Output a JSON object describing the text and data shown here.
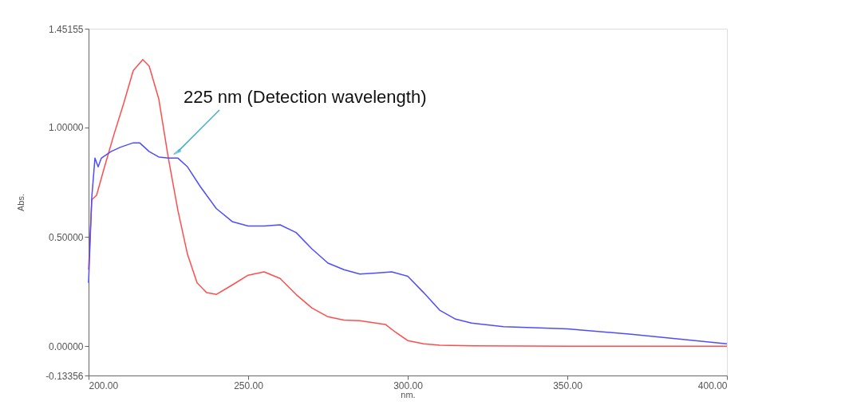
{
  "chart_data": {
    "type": "line",
    "xlabel": "nm.",
    "ylabel": "Abs.",
    "xlim": [
      200,
      400
    ],
    "xticks": [
      {
        "value": 200,
        "label": "200.00"
      },
      {
        "value": 250,
        "label": "250.00"
      },
      {
        "value": 300,
        "label": "300.00"
      },
      {
        "value": 350,
        "label": "350.00"
      },
      {
        "value": 400,
        "label": "400.00"
      }
    ],
    "ylim": [
      -0.13356,
      1.45155
    ],
    "yticks": [
      {
        "value": -0.13356,
        "label": "-0.13356"
      },
      {
        "value": 0,
        "label": "0.00000"
      },
      {
        "value": 0.5,
        "label": "0.50000"
      },
      {
        "value": 1.0,
        "label": "1.00000"
      },
      {
        "value": 1.45155,
        "label": "1.45155"
      }
    ],
    "grid": false,
    "legend": false,
    "marker": "none",
    "line_style": "solid",
    "annotations": [
      {
        "text": "225 nm (Detection wavelength)",
        "x": 228,
        "y": 0.89
      }
    ],
    "series": [
      {
        "color": "#ff4d4d",
        "x": [
          200,
          201,
          202.5,
          205,
          208,
          211,
          214,
          217,
          219,
          222,
          225,
          228,
          231,
          234,
          237,
          240,
          245,
          250,
          255,
          260,
          265,
          270,
          275,
          280,
          285,
          290,
          293,
          296,
          300,
          305,
          310,
          320,
          350,
          400
        ],
        "values": [
          0.35,
          0.67,
          0.69,
          0.82,
          0.97,
          1.11,
          1.26,
          1.31,
          1.28,
          1.13,
          0.86,
          0.62,
          0.42,
          0.29,
          0.245,
          0.237,
          0.28,
          0.325,
          0.34,
          0.31,
          0.237,
          0.175,
          0.135,
          0.12,
          0.117,
          0.106,
          0.1,
          0.066,
          0.026,
          0.011,
          0.005,
          0.002,
          0,
          0
        ]
      },
      {
        "color": "#4d4dff",
        "x": [
          200,
          201,
          202,
          203,
          204,
          207,
          210,
          214,
          216,
          219,
          222,
          225,
          228,
          231,
          235,
          240,
          245,
          250,
          255,
          260,
          265,
          270,
          275,
          280,
          285,
          290,
          295,
          300,
          305,
          310,
          315,
          320,
          330,
          350,
          370,
          400
        ],
        "values": [
          0.29,
          0.68,
          0.86,
          0.82,
          0.86,
          0.89,
          0.91,
          0.93,
          0.93,
          0.89,
          0.865,
          0.86,
          0.86,
          0.82,
          0.73,
          0.63,
          0.57,
          0.55,
          0.55,
          0.555,
          0.52,
          0.445,
          0.38,
          0.35,
          0.33,
          0.335,
          0.34,
          0.32,
          0.245,
          0.165,
          0.124,
          0.106,
          0.09,
          0.08,
          0.055,
          0.011
        ]
      }
    ]
  }
}
